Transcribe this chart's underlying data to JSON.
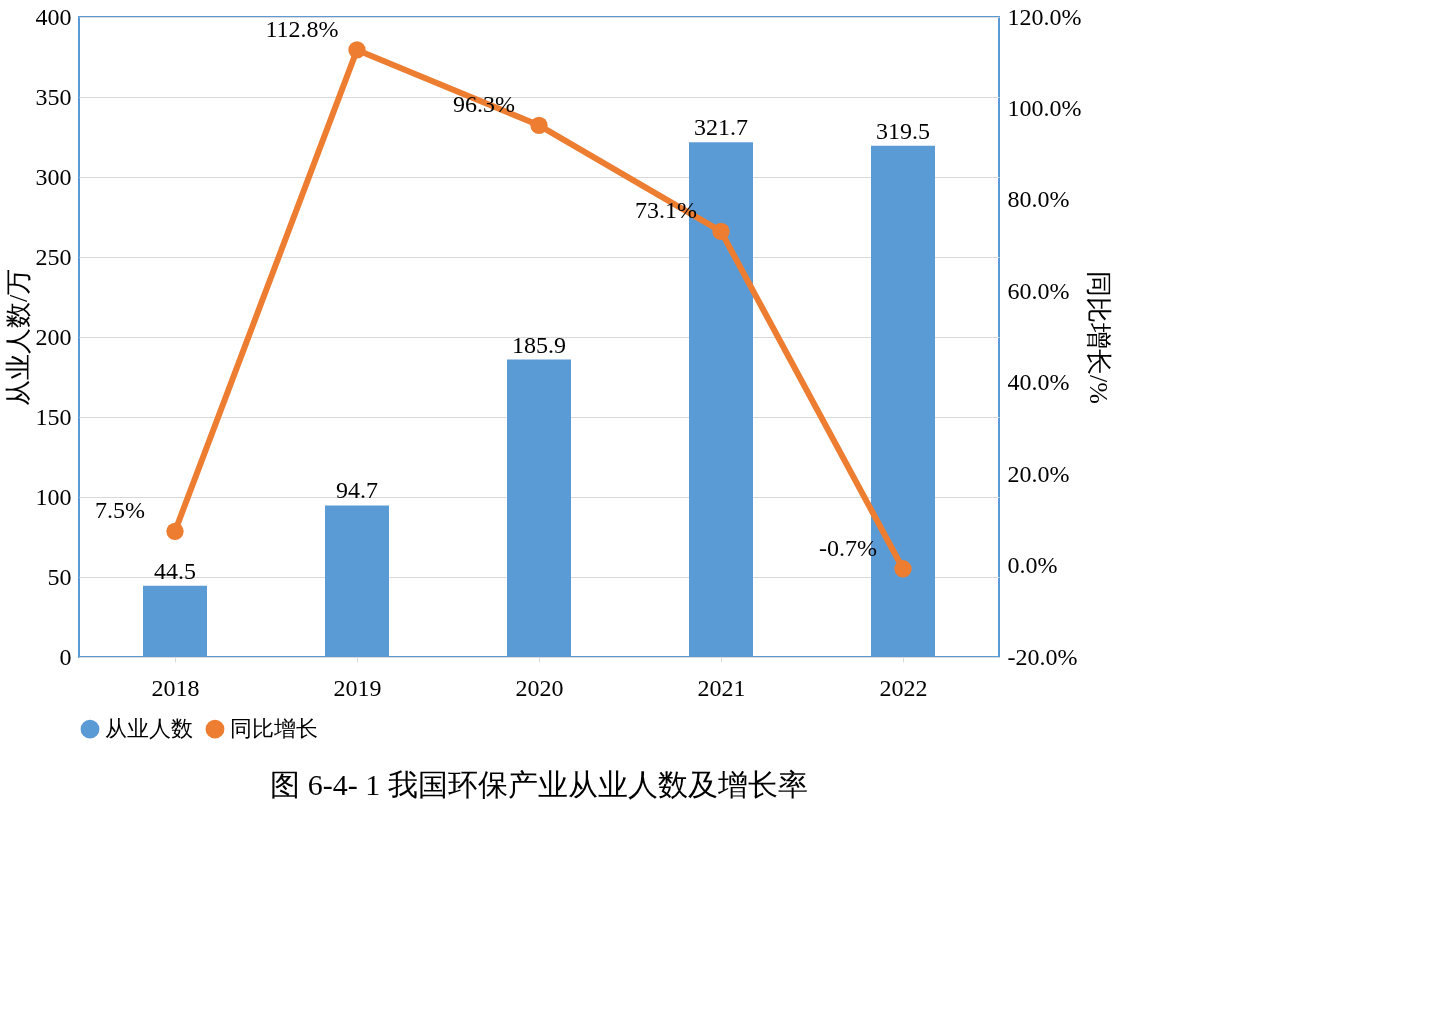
{
  "chart_data": {
    "type": "bar",
    "title": "图 6-4- 1 我国环保产业从业人数及增长率",
    "categories": [
      "2018",
      "2019",
      "2020",
      "2021",
      "2022"
    ],
    "ylabel": "从业人数/万",
    "y2label": "同比增长/%",
    "series": [
      {
        "name": "从业人数",
        "color": "#5b9bd5",
        "values": [
          44.5,
          94.7,
          185.9,
          321.7,
          319.5
        ],
        "value_labels": [
          "44.5",
          "94.7",
          "185.9",
          "321.7",
          "319.5"
        ]
      },
      {
        "name": "同比增长",
        "type": "line",
        "axis": "y2",
        "color": "#ed7d31",
        "marker": "circle",
        "values": [
          7.5,
          112.8,
          96.3,
          73.1,
          -0.7
        ],
        "value_labels": [
          "7.5%",
          "112.8%",
          "96.3%",
          "73.1%",
          "-0.7%"
        ]
      }
    ],
    "ylim": [
      0,
      400
    ],
    "yticks": [
      0,
      50,
      100,
      150,
      200,
      250,
      300,
      350,
      400
    ],
    "y2lim": [
      -20,
      120
    ],
    "y2ticks": [
      {
        "value": -20,
        "label": "-20.0%"
      },
      {
        "value": 0,
        "label": "0.0%"
      },
      {
        "value": 20,
        "label": "20.0%"
      },
      {
        "value": 40,
        "label": "40.0%"
      },
      {
        "value": 60,
        "label": "60.0%"
      },
      {
        "value": 80,
        "label": "80.0%"
      },
      {
        "value": 100,
        "label": "100.0%"
      },
      {
        "value": 120,
        "label": "120.0%"
      }
    ],
    "grid": "y",
    "legend": "bottom"
  }
}
